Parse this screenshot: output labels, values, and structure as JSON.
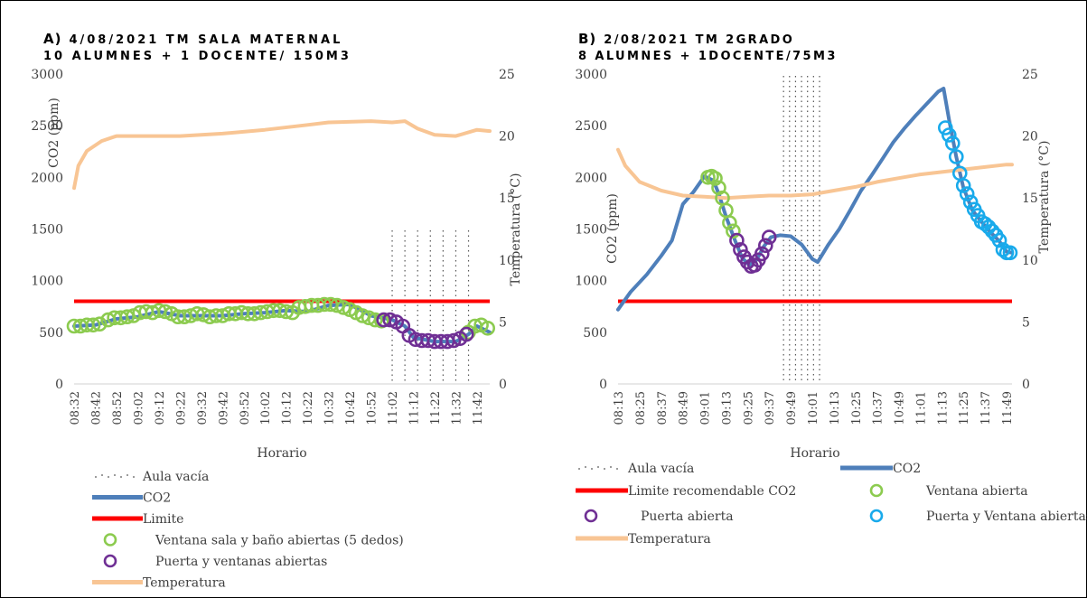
{
  "chart_data": [
    {
      "type": "line",
      "title_label": "A)",
      "title_line1": "4/08/2021 TM SALA MATERNAL",
      "title_line2": "10 ALUMNES + 1 DOCENTE/ 150M3",
      "xlabel": "Horario",
      "ylabel": "CO2 (ppm)",
      "y2label": "Temperatura (°C)",
      "ylim": [
        0,
        3000
      ],
      "y2lim": [
        0,
        25
      ],
      "yticks": [
        "0",
        "500",
        "1000",
        "1500",
        "2000",
        "2500",
        "3000"
      ],
      "y2ticks": [
        "0",
        "5",
        "10",
        "15",
        "20",
        "25"
      ],
      "categories": [
        "08:32",
        "08:42",
        "08:52",
        "09:02",
        "09:12",
        "09:22",
        "09:32",
        "09:42",
        "09:52",
        "10:02",
        "10:12",
        "10:22",
        "10:32",
        "10:42",
        "10:52",
        "11:02",
        "11:12",
        "11:22",
        "11:32",
        "11:42"
      ],
      "x_start": "08:32",
      "x_end": "11:48",
      "limit": 800,
      "empty_room": [
        "11:02",
        "11:38"
      ],
      "series": [
        {
          "name": "CO2",
          "axis": "left",
          "color": "#4e7fba",
          "points": [
            [
              "08:32",
              560
            ],
            [
              "08:42",
              570
            ],
            [
              "08:52",
              630
            ],
            [
              "09:02",
              650
            ],
            [
              "09:12",
              700
            ],
            [
              "09:22",
              660
            ],
            [
              "09:32",
              660
            ],
            [
              "09:42",
              660
            ],
            [
              "09:52",
              680
            ],
            [
              "10:02",
              690
            ],
            [
              "10:12",
              710
            ],
            [
              "10:22",
              700
            ],
            [
              "10:32",
              760
            ],
            [
              "10:42",
              770
            ],
            [
              "10:52",
              660
            ],
            [
              "11:02",
              620
            ],
            [
              "11:08",
              560
            ],
            [
              "11:12",
              450
            ],
            [
              "11:22",
              410
            ],
            [
              "11:32",
              410
            ],
            [
              "11:38",
              480
            ],
            [
              "11:42",
              560
            ],
            [
              "11:48",
              500
            ]
          ]
        },
        {
          "name": "Temperatura",
          "axis": "right",
          "color": "#f8c594",
          "points": [
            [
              "08:32",
              15.8
            ],
            [
              "08:34",
              17.6
            ],
            [
              "08:38",
              18.8
            ],
            [
              "08:45",
              19.6
            ],
            [
              "08:52",
              20.0
            ],
            [
              "09:02",
              20.0
            ],
            [
              "09:22",
              20.0
            ],
            [
              "09:42",
              20.2
            ],
            [
              "10:02",
              20.5
            ],
            [
              "10:22",
              20.9
            ],
            [
              "10:32",
              21.1
            ],
            [
              "10:52",
              21.2
            ],
            [
              "11:02",
              21.1
            ],
            [
              "11:08",
              21.2
            ],
            [
              "11:14",
              20.6
            ],
            [
              "11:22",
              20.1
            ],
            [
              "11:32",
              20.0
            ],
            [
              "11:42",
              20.5
            ],
            [
              "11:48",
              20.4
            ]
          ]
        }
      ],
      "markers": [
        {
          "name": "Ventana sala y baño abiertas (5 dedos)",
          "color": "#8ccb4f",
          "points": [
            [
              "08:32",
              560
            ],
            [
              "08:35",
              560
            ],
            [
              "08:38",
              570
            ],
            [
              "08:41",
              570
            ],
            [
              "08:44",
              580
            ],
            [
              "08:48",
              620
            ],
            [
              "08:51",
              640
            ],
            [
              "08:54",
              640
            ],
            [
              "08:57",
              650
            ],
            [
              "09:00",
              660
            ],
            [
              "09:03",
              690
            ],
            [
              "09:06",
              700
            ],
            [
              "09:09",
              690
            ],
            [
              "09:12",
              710
            ],
            [
              "09:15",
              700
            ],
            [
              "09:18",
              680
            ],
            [
              "09:21",
              650
            ],
            [
              "09:24",
              650
            ],
            [
              "09:27",
              660
            ],
            [
              "09:30",
              680
            ],
            [
              "09:33",
              670
            ],
            [
              "09:36",
              650
            ],
            [
              "09:39",
              660
            ],
            [
              "09:42",
              660
            ],
            [
              "09:45",
              680
            ],
            [
              "09:48",
              680
            ],
            [
              "09:51",
              690
            ],
            [
              "09:54",
              680
            ],
            [
              "09:57",
              680
            ],
            [
              "10:00",
              690
            ],
            [
              "10:03",
              700
            ],
            [
              "10:06",
              710
            ],
            [
              "10:09",
              710
            ],
            [
              "10:12",
              700
            ],
            [
              "10:15",
              690
            ],
            [
              "10:18",
              740
            ],
            [
              "10:21",
              750
            ],
            [
              "10:24",
              760
            ],
            [
              "10:27",
              760
            ],
            [
              "10:30",
              770
            ],
            [
              "10:33",
              770
            ],
            [
              "10:36",
              760
            ],
            [
              "10:39",
              740
            ],
            [
              "10:42",
              720
            ],
            [
              "10:45",
              690
            ],
            [
              "10:48",
              660
            ],
            [
              "10:51",
              640
            ],
            [
              "10:54",
              620
            ],
            [
              "10:57",
              610
            ],
            [
              "11:38",
              500
            ],
            [
              "11:41",
              560
            ],
            [
              "11:44",
              570
            ],
            [
              "11:47",
              540
            ]
          ]
        },
        {
          "name": "Puerta y ventanas abiertas",
          "color": "#6f2f94",
          "points": [
            [
              "10:58",
              620
            ],
            [
              "11:01",
              620
            ],
            [
              "11:04",
              600
            ],
            [
              "11:07",
              560
            ],
            [
              "11:10",
              470
            ],
            [
              "11:13",
              430
            ],
            [
              "11:16",
              420
            ],
            [
              "11:19",
              420
            ],
            [
              "11:22",
              410
            ],
            [
              "11:25",
              410
            ],
            [
              "11:28",
              410
            ],
            [
              "11:31",
              420
            ],
            [
              "11:34",
              440
            ],
            [
              "11:37",
              480
            ]
          ]
        }
      ],
      "legend": [
        {
          "label": "Aula vacía",
          "kind": "dots"
        },
        {
          "label": "CO2",
          "kind": "line",
          "color": "#4e7fba"
        },
        {
          "label": "Limite",
          "kind": "line",
          "color": "#fe0000"
        },
        {
          "label": "Ventana sala y baño abiertas (5 dedos)",
          "kind": "circle",
          "color": "#8ccb4f"
        },
        {
          "label": "Puerta y ventanas abiertas",
          "kind": "circle",
          "color": "#6f2f94"
        },
        {
          "label": "Temperatura",
          "kind": "line",
          "color": "#f8c594"
        }
      ]
    },
    {
      "type": "line",
      "title_label": "B)",
      "title_line1": "2/08/2021 TM 2GRADO",
      "title_line2": "8 ALUMNES + 1DOCENTE/75M3",
      "xlabel": "Horario",
      "ylabel": "CO2 (ppm)",
      "y2label": "Temperatura (°C)",
      "ylim": [
        0,
        3000
      ],
      "y2lim": [
        0,
        25
      ],
      "yticks": [
        "0",
        "500",
        "1000",
        "1500",
        "2000",
        "2500",
        "3000"
      ],
      "y2ticks": [
        "0",
        "5",
        "10",
        "15",
        "20",
        "25"
      ],
      "categories": [
        "08:13",
        "08:25",
        "08:37",
        "08:49",
        "09:01",
        "09:13",
        "09:25",
        "09:37",
        "09:49",
        "10:01",
        "10:13",
        "10:25",
        "10:37",
        "10:49",
        "11:01",
        "11:13",
        "11:25",
        "11:37",
        "11:49"
      ],
      "x_start": "08:13",
      "x_end": "11:52",
      "limit": 800,
      "empty_room": [
        "09:45",
        "10:05"
      ],
      "series": [
        {
          "name": "CO2",
          "axis": "left",
          "color": "#4e7fba",
          "points": [
            [
              "08:13",
              720
            ],
            [
              "08:20",
              890
            ],
            [
              "08:29",
              1060
            ],
            [
              "08:37",
              1240
            ],
            [
              "08:43",
              1390
            ],
            [
              "08:49",
              1740
            ],
            [
              "08:55",
              1860
            ],
            [
              "09:01",
              2010
            ],
            [
              "09:06",
              1970
            ],
            [
              "09:09",
              1840
            ],
            [
              "09:13",
              1620
            ],
            [
              "09:18",
              1390
            ],
            [
              "09:22",
              1220
            ],
            [
              "09:26",
              1150
            ],
            [
              "09:30",
              1200
            ],
            [
              "09:34",
              1330
            ],
            [
              "09:38",
              1420
            ],
            [
              "09:43",
              1440
            ],
            [
              "09:49",
              1430
            ],
            [
              "09:55",
              1350
            ],
            [
              "10:01",
              1210
            ],
            [
              "10:04",
              1180
            ],
            [
              "10:10",
              1350
            ],
            [
              "10:16",
              1500
            ],
            [
              "10:22",
              1680
            ],
            [
              "10:28",
              1870
            ],
            [
              "10:34",
              2020
            ],
            [
              "10:40",
              2180
            ],
            [
              "10:46",
              2340
            ],
            [
              "10:52",
              2470
            ],
            [
              "10:58",
              2590
            ],
            [
              "11:04",
              2700
            ],
            [
              "11:11",
              2830
            ],
            [
              "11:14",
              2860
            ],
            [
              "11:17",
              2560
            ],
            [
              "11:21",
              2200
            ],
            [
              "11:25",
              1900
            ],
            [
              "11:30",
              1680
            ],
            [
              "11:35",
              1570
            ],
            [
              "11:40",
              1470
            ],
            [
              "11:45",
              1380
            ],
            [
              "11:49",
              1280
            ],
            [
              "11:52",
              1270
            ]
          ]
        },
        {
          "name": "Temperatura",
          "axis": "right",
          "color": "#f8c594",
          "points": [
            [
              "08:13",
              18.9
            ],
            [
              "08:17",
              17.6
            ],
            [
              "08:25",
              16.3
            ],
            [
              "08:37",
              15.6
            ],
            [
              "08:49",
              15.2
            ],
            [
              "09:01",
              15.1
            ],
            [
              "09:13",
              15.0
            ],
            [
              "09:25",
              15.1
            ],
            [
              "09:37",
              15.2
            ],
            [
              "09:49",
              15.2
            ],
            [
              "10:01",
              15.3
            ],
            [
              "10:13",
              15.6
            ],
            [
              "10:25",
              15.9
            ],
            [
              "10:37",
              16.3
            ],
            [
              "10:49",
              16.6
            ],
            [
              "11:01",
              16.9
            ],
            [
              "11:13",
              17.1
            ],
            [
              "11:25",
              17.3
            ],
            [
              "11:37",
              17.5
            ],
            [
              "11:49",
              17.7
            ],
            [
              "11:52",
              17.7
            ]
          ]
        }
      ],
      "markers": [
        {
          "name": "Ventana abierta",
          "color": "#8ccb4f",
          "points": [
            [
              "09:03",
              2000
            ],
            [
              "09:05",
              2010
            ],
            [
              "09:07",
              1990
            ],
            [
              "09:09",
              1900
            ],
            [
              "09:11",
              1800
            ],
            [
              "09:13",
              1680
            ],
            [
              "09:15",
              1560
            ],
            [
              "09:17",
              1480
            ]
          ]
        },
        {
          "name": "Puerta abierta",
          "color": "#6f2f94",
          "points": [
            [
              "09:19",
              1390
            ],
            [
              "09:21",
              1300
            ],
            [
              "09:23",
              1230
            ],
            [
              "09:25",
              1180
            ],
            [
              "09:27",
              1140
            ],
            [
              "09:29",
              1150
            ],
            [
              "09:31",
              1200
            ],
            [
              "09:33",
              1260
            ],
            [
              "09:35",
              1340
            ],
            [
              "09:37",
              1420
            ]
          ]
        },
        {
          "name": "Puerta y Ventana abiertas",
          "color": "#19aaeb",
          "points": [
            [
              "11:15",
              2480
            ],
            [
              "11:17",
              2410
            ],
            [
              "11:19",
              2330
            ],
            [
              "11:21",
              2200
            ],
            [
              "11:23",
              2040
            ],
            [
              "11:25",
              1920
            ],
            [
              "11:27",
              1840
            ],
            [
              "11:29",
              1760
            ],
            [
              "11:31",
              1690
            ],
            [
              "11:33",
              1630
            ],
            [
              "11:35",
              1570
            ],
            [
              "11:37",
              1550
            ],
            [
              "11:39",
              1520
            ],
            [
              "11:41",
              1480
            ],
            [
              "11:43",
              1440
            ],
            [
              "11:45",
              1390
            ],
            [
              "11:47",
              1300
            ],
            [
              "11:49",
              1270
            ],
            [
              "11:51",
              1270
            ]
          ]
        }
      ],
      "legend": [
        {
          "label": "Aula vacía",
          "kind": "dots"
        },
        {
          "label": "CO2",
          "kind": "line",
          "color": "#4e7fba"
        },
        {
          "label": "Limite recomendable CO2",
          "kind": "line",
          "color": "#fe0000"
        },
        {
          "label": "Ventana abierta",
          "kind": "circle",
          "color": "#8ccb4f"
        },
        {
          "label": "Puerta abierta",
          "kind": "circle",
          "color": "#6f2f94"
        },
        {
          "label": "Puerta y Ventana abiertas",
          "kind": "circle",
          "color": "#19aaeb"
        },
        {
          "label": "Temperatura",
          "kind": "line",
          "color": "#f8c594"
        }
      ]
    }
  ]
}
